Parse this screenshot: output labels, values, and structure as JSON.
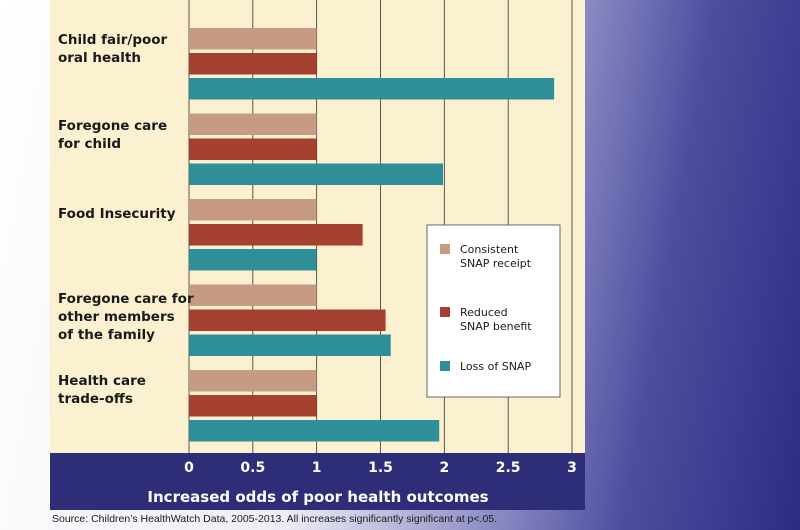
{
  "chart_data": {
    "type": "bar",
    "orientation": "horizontal",
    "categories": [
      [
        "Child fair/poor",
        "oral health"
      ],
      [
        "Foregone care",
        "for child"
      ],
      [
        "Food Insecurity"
      ],
      [
        "Foregone care for",
        "other members",
        "of the family"
      ],
      [
        "Health care",
        "trade-offs"
      ]
    ],
    "series": [
      {
        "name": "Consistent SNAP receipt",
        "legend_lines": [
          "Consistent",
          "SNAP receipt"
        ],
        "color": "#c79a84",
        "values": [
          1,
          1,
          1,
          1,
          1
        ]
      },
      {
        "name": "Reduced SNAP benefit",
        "legend_lines": [
          "Reduced",
          "SNAP benefit"
        ],
        "color": "#a3402f",
        "values": [
          1,
          1,
          1.36,
          1.54,
          1
        ]
      },
      {
        "name": "Loss of SNAP",
        "legend_lines": [
          "Loss of SNAP"
        ],
        "color": "#2e8f98",
        "values": [
          2.86,
          1.99,
          1,
          1.58,
          1.96
        ]
      }
    ],
    "x_ticks": [
      "0",
      "0.5",
      "1",
      "1.5",
      "2",
      "2.5",
      "3"
    ],
    "xlim": [
      0,
      3
    ],
    "xlabel": "Increased odds of poor health outcomes",
    "grid": true,
    "legend_position": "right"
  },
  "source_note": "Source: Children’s HealthWatch Data, 2005-2013. All increases significantly significant at p<.05."
}
